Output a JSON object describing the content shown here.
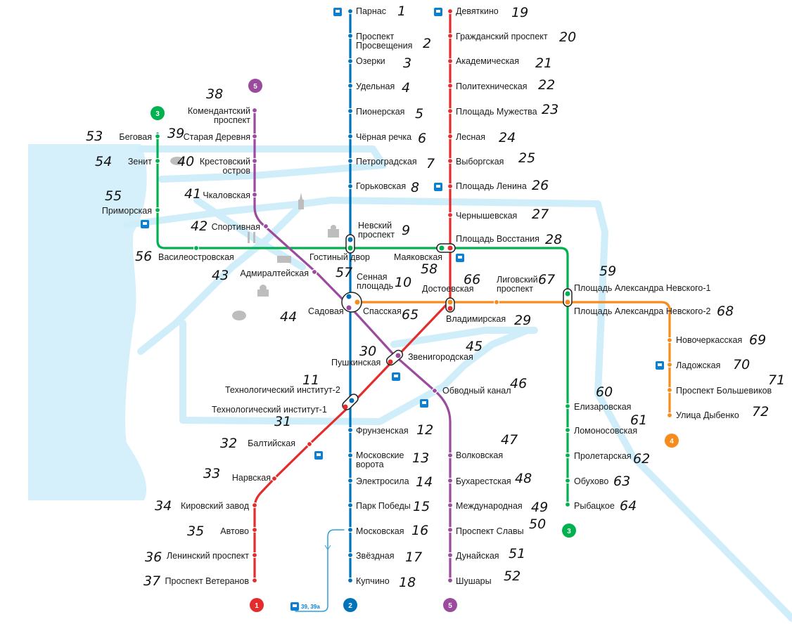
{
  "lines": {
    "l1": {
      "number": "1",
      "color": "#e42c2c"
    },
    "l2": {
      "number": "2",
      "color": "#0072ba"
    },
    "l3": {
      "number": "3",
      "color": "#00b14f"
    },
    "l4": {
      "number": "4",
      "color": "#f68b1e"
    },
    "l5": {
      "number": "5",
      "color": "#9b4a9e"
    }
  },
  "colors": {
    "water": "#d6f0fb",
    "river": "#cfeefa"
  },
  "bus_label": "39, 39а",
  "stations": {
    "s01": {
      "name": "Парнас",
      "mark": "1"
    },
    "s02a": {
      "name": "Проспект",
      "mark": "2"
    },
    "s02b": {
      "name": "Просвещения"
    },
    "s03": {
      "name": "Озерки",
      "mark": "3"
    },
    "s04": {
      "name": "Удельная",
      "mark": "4"
    },
    "s05": {
      "name": "Пионерская",
      "mark": "5"
    },
    "s06": {
      "name": "Чёрная речка",
      "mark": "6"
    },
    "s07": {
      "name": "Петроградская",
      "mark": "7"
    },
    "s08": {
      "name": "Горьковская",
      "mark": "8"
    },
    "s09a": {
      "name": "Невский",
      "mark": "9"
    },
    "s09b": {
      "name": "проспект"
    },
    "s10a": {
      "name": "Сенная",
      "mark": "10"
    },
    "s10b": {
      "name": "площадь"
    },
    "s11": {
      "name": "Технологический институт-2",
      "mark": "11"
    },
    "s12": {
      "name": "Фрунзенская",
      "mark": "12"
    },
    "s13a": {
      "name": "Московские",
      "mark": "13"
    },
    "s13b": {
      "name": "ворота"
    },
    "s14": {
      "name": "Электросила",
      "mark": "14"
    },
    "s15": {
      "name": "Парк Победы",
      "mark": "15"
    },
    "s16": {
      "name": "Московская",
      "mark": "16"
    },
    "s17": {
      "name": "Звёздная",
      "mark": "17"
    },
    "s18": {
      "name": "Купчино",
      "mark": "18"
    },
    "s19": {
      "name": "Девяткино",
      "mark": "19"
    },
    "s20": {
      "name": "Гражданский проспект",
      "mark": "20"
    },
    "s21": {
      "name": "Академическая",
      "mark": "21"
    },
    "s22": {
      "name": "Политехническая",
      "mark": "22"
    },
    "s23": {
      "name": "Площадь Мужества",
      "mark": "23"
    },
    "s24": {
      "name": "Лесная",
      "mark": "24"
    },
    "s25": {
      "name": "Выборгская",
      "mark": "25"
    },
    "s26": {
      "name": "Площадь Ленина",
      "mark": "26"
    },
    "s27": {
      "name": "Чернышевская",
      "mark": "27"
    },
    "s28": {
      "name": "Площадь Восстания",
      "mark": "28"
    },
    "s29": {
      "name": "Владимирская",
      "mark": "29"
    },
    "s30": {
      "name": "Пушкинская",
      "mark": "30"
    },
    "s31": {
      "name": "Технологический институт-1",
      "mark": "31"
    },
    "s32": {
      "name": "Балтийская",
      "mark": "32"
    },
    "s33": {
      "name": "Нарвская",
      "mark": "33"
    },
    "s34": {
      "name": "Кировский завод",
      "mark": "34"
    },
    "s35": {
      "name": "Автово",
      "mark": "35"
    },
    "s36": {
      "name": "Ленинский проспект",
      "mark": "36"
    },
    "s37": {
      "name": "Проспект Ветеранов",
      "mark": "37"
    },
    "s38a": {
      "name": "Комендантский",
      "mark": "38"
    },
    "s38b": {
      "name": "проспект"
    },
    "s39": {
      "name": "Старая Деревня",
      "mark": "39"
    },
    "s40a": {
      "name": "Крестовский",
      "mark": "40"
    },
    "s40b": {
      "name": "остров"
    },
    "s41": {
      "name": "Чкаловская",
      "mark": "41"
    },
    "s42": {
      "name": "Спортивная",
      "mark": "42"
    },
    "s43": {
      "name": "Адмиралтейская",
      "mark": "43"
    },
    "s44": {
      "name": "Садовая",
      "mark": "44"
    },
    "s45": {
      "name": "Звенигородская",
      "mark": "45"
    },
    "s46": {
      "name": "Обводный канал",
      "mark": "46"
    },
    "s47": {
      "name": "Волковская",
      "mark": "47"
    },
    "s48": {
      "name": "Бухарестская",
      "mark": "48"
    },
    "s49": {
      "name": "Международная",
      "mark": "49"
    },
    "s50": {
      "name": "Проспект Славы",
      "mark": "50"
    },
    "s51": {
      "name": "Дунайская",
      "mark": "51"
    },
    "s52": {
      "name": "Шушары",
      "mark": "52"
    },
    "s53": {
      "name": "Беговая",
      "mark": "53"
    },
    "s54": {
      "name": "Зенит",
      "mark": "54"
    },
    "s55": {
      "name": "Приморская",
      "mark": "55"
    },
    "s56": {
      "name": "Василеостровская",
      "mark": "56"
    },
    "s57": {
      "name": "Гостиный двор",
      "mark": "57"
    },
    "s58": {
      "name": "Маяковская",
      "mark": "58"
    },
    "s59": {
      "name": "Площадь Александра Невского-1",
      "mark": "59"
    },
    "s60": {
      "name": "Елизаровская",
      "mark": "60"
    },
    "s61": {
      "name": "Ломоносовская",
      "mark": "61"
    },
    "s62": {
      "name": "Пролетарская",
      "mark": "62"
    },
    "s63": {
      "name": "Обухово",
      "mark": "63"
    },
    "s64": {
      "name": "Рыбацкое",
      "mark": "64"
    },
    "s65": {
      "name": "Спасская",
      "mark": "65"
    },
    "s66": {
      "name": "Достоевская",
      "mark": "66"
    },
    "s67a": {
      "name": "Лиговский",
      "mark": "67"
    },
    "s67b": {
      "name": "проспект"
    },
    "s68": {
      "name": "Площадь Александра Невского-2",
      "mark": "68"
    },
    "s69": {
      "name": "Новочеркасская",
      "mark": "69"
    },
    "s70": {
      "name": "Ладожская",
      "mark": "70"
    },
    "s71": {
      "name": "Проспект Большевиков",
      "mark": "71"
    },
    "s72": {
      "name": "Улица Дыбенко",
      "mark": "72"
    }
  }
}
